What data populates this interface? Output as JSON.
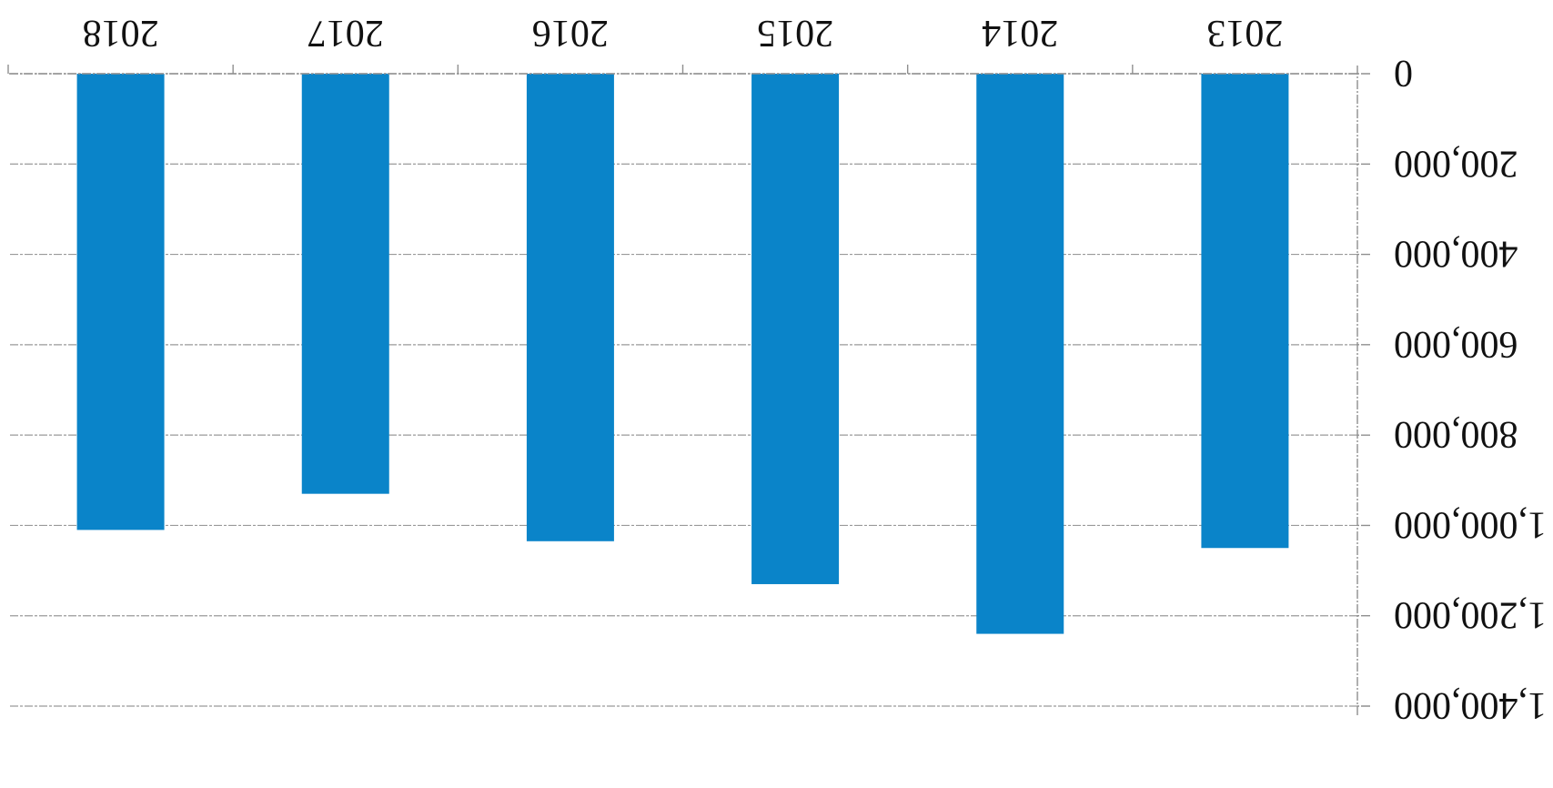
{
  "chart_data": {
    "type": "bar",
    "categories": [
      "2013",
      "2014",
      "2015",
      "2016",
      "2017",
      "2018"
    ],
    "values": [
      1050000,
      1240000,
      1130000,
      1035000,
      930000,
      1010000
    ],
    "ylim": [
      0,
      1400000
    ],
    "yticks": [
      0,
      200000,
      400000,
      600000,
      800000,
      1000000,
      1200000,
      1400000
    ],
    "ytick_labels": [
      "0",
      "200,000",
      "400,000",
      "600,000",
      "800,000",
      "1,000,000",
      "1,200,000",
      "1,400,000"
    ],
    "title": "",
    "xlabel": "",
    "ylabel": "",
    "grid": true,
    "orientation": "rotated 180 degrees",
    "bar_color": "#0a84c9"
  }
}
